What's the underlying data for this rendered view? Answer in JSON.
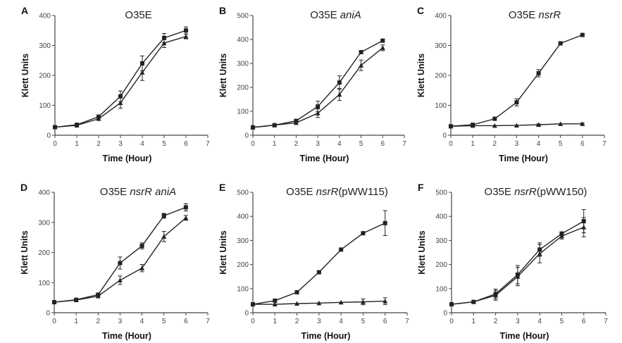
{
  "chart_data": [
    {
      "panel": "A",
      "type": "line",
      "title_parts": [
        {
          "text": "O35E",
          "italic": false
        }
      ],
      "xlabel": "Time (Hour)",
      "ylabel": "Klett Units",
      "xlim": [
        0,
        7
      ],
      "ylim": [
        0,
        400
      ],
      "xticks": [
        0,
        1,
        2,
        3,
        4,
        5,
        6,
        7
      ],
      "yticks": [
        0,
        100,
        200,
        300,
        400
      ],
      "x": [
        0,
        1,
        2,
        3,
        4,
        5,
        6
      ],
      "series": [
        {
          "marker": "square",
          "values": [
            27,
            35,
            62,
            130,
            240,
            325,
            350
          ],
          "errors": [
            0,
            0,
            0,
            18,
            25,
            15,
            12
          ]
        },
        {
          "marker": "triangle",
          "values": [
            27,
            33,
            55,
            108,
            210,
            308,
            330
          ],
          "errors": [
            0,
            0,
            0,
            18,
            27,
            15,
            8
          ]
        }
      ]
    },
    {
      "panel": "B",
      "type": "line",
      "title_parts": [
        {
          "text": "O35E ",
          "italic": false
        },
        {
          "text": "aniA",
          "italic": true
        }
      ],
      "xlabel": "Time (Hour)",
      "ylabel": "Klett Units",
      "xlim": [
        0,
        7
      ],
      "ylim": [
        0,
        500
      ],
      "xticks": [
        0,
        1,
        2,
        3,
        4,
        5,
        6,
        7
      ],
      "yticks": [
        0,
        100,
        200,
        300,
        400,
        500
      ],
      "x": [
        0,
        1,
        2,
        3,
        4,
        5,
        6
      ],
      "series": [
        {
          "marker": "square",
          "values": [
            33,
            42,
            60,
            120,
            220,
            347,
            395
          ],
          "errors": [
            0,
            0,
            0,
            22,
            28,
            0,
            5
          ]
        },
        {
          "marker": "triangle",
          "values": [
            33,
            42,
            52,
            92,
            170,
            292,
            365
          ],
          "errors": [
            0,
            0,
            0,
            18,
            25,
            22,
            12
          ]
        }
      ]
    },
    {
      "panel": "C",
      "type": "line",
      "title_parts": [
        {
          "text": "O35E ",
          "italic": false
        },
        {
          "text": "nsrR",
          "italic": true
        }
      ],
      "xlabel": "Time (Hour)",
      "ylabel": "Klett Units",
      "xlim": [
        0,
        7
      ],
      "ylim": [
        0,
        400
      ],
      "xticks": [
        0,
        1,
        2,
        3,
        4,
        5,
        6,
        7
      ],
      "yticks": [
        0,
        100,
        200,
        300,
        400
      ],
      "x": [
        0,
        1,
        2,
        3,
        4,
        5,
        6
      ],
      "series": [
        {
          "marker": "square",
          "values": [
            30,
            35,
            55,
            110,
            207,
            307,
            335
          ],
          "errors": [
            0,
            0,
            0,
            12,
            12,
            5,
            3
          ]
        },
        {
          "marker": "triangle",
          "values": [
            30,
            32,
            32,
            33,
            35,
            38,
            38
          ],
          "errors": [
            0,
            0,
            0,
            0,
            3,
            0,
            3
          ]
        }
      ]
    },
    {
      "panel": "D",
      "type": "line",
      "title_parts": [
        {
          "text": "O35E ",
          "italic": false
        },
        {
          "text": "nsrR aniA",
          "italic": true
        }
      ],
      "xlabel": "Time (Hour)",
      "ylabel": "Klett Units",
      "xlim": [
        0,
        7
      ],
      "ylim": [
        0,
        400
      ],
      "xticks": [
        0,
        1,
        2,
        3,
        4,
        5,
        6,
        7
      ],
      "yticks": [
        0,
        100,
        200,
        300,
        400
      ],
      "x": [
        0,
        1,
        2,
        3,
        4,
        5,
        6
      ],
      "series": [
        {
          "marker": "square",
          "values": [
            35,
            43,
            60,
            165,
            222,
            322,
            350
          ],
          "errors": [
            0,
            0,
            0,
            20,
            10,
            8,
            12
          ]
        },
        {
          "marker": "triangle",
          "values": [
            35,
            42,
            55,
            108,
            148,
            253,
            315
          ],
          "errors": [
            0,
            0,
            0,
            14,
            12,
            17,
            8
          ]
        }
      ]
    },
    {
      "panel": "E",
      "type": "line",
      "title_parts": [
        {
          "text": "O35E ",
          "italic": false
        },
        {
          "text": "nsrR",
          "italic": true
        },
        {
          "text": "(pWW115)",
          "italic": false
        }
      ],
      "xlabel": "Time (Hour)",
      "ylabel": "Klett Units",
      "xlim": [
        0,
        7
      ],
      "ylim": [
        0,
        500
      ],
      "xticks": [
        0,
        1,
        2,
        3,
        4,
        5,
        6,
        7
      ],
      "yticks": [
        0,
        100,
        200,
        300,
        400,
        500
      ],
      "x": [
        0,
        1,
        2,
        3,
        4,
        5,
        6
      ],
      "series": [
        {
          "marker": "square",
          "values": [
            35,
            50,
            85,
            168,
            262,
            330,
            372
          ],
          "errors": [
            0,
            0,
            0,
            5,
            0,
            0,
            52
          ]
        },
        {
          "marker": "triangle",
          "values": [
            35,
            35,
            38,
            40,
            43,
            45,
            48
          ],
          "errors": [
            0,
            0,
            0,
            0,
            0,
            12,
            14
          ]
        }
      ]
    },
    {
      "panel": "F",
      "type": "line",
      "title_parts": [
        {
          "text": "O35E ",
          "italic": false
        },
        {
          "text": "nsrR",
          "italic": true
        },
        {
          "text": "(pWW150)",
          "italic": false
        }
      ],
      "xlabel": "Time (Hour)",
      "ylabel": "Klett Units",
      "xlim": [
        0,
        7
      ],
      "ylim": [
        0,
        500
      ],
      "xticks": [
        0,
        1,
        2,
        3,
        4,
        5,
        6,
        7
      ],
      "yticks": [
        0,
        100,
        200,
        300,
        400,
        500
      ],
      "x": [
        0,
        1,
        2,
        3,
        4,
        5,
        6
      ],
      "series": [
        {
          "marker": "square",
          "values": [
            35,
            45,
            78,
            158,
            262,
            328,
            380
          ],
          "errors": [
            0,
            0,
            20,
            38,
            28,
            8,
            48
          ]
        },
        {
          "marker": "triangle",
          "values": [
            35,
            45,
            72,
            150,
            245,
            318,
            355
          ],
          "errors": [
            0,
            0,
            20,
            38,
            38,
            12,
            40
          ]
        }
      ]
    }
  ],
  "colors": {
    "line": "#222222",
    "axis": "#444444"
  }
}
